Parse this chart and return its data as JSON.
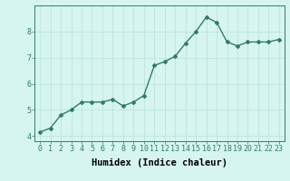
{
  "x": [
    0,
    1,
    2,
    3,
    4,
    5,
    6,
    7,
    8,
    9,
    10,
    11,
    12,
    13,
    14,
    15,
    16,
    17,
    18,
    19,
    20,
    21,
    22,
    23
  ],
  "y": [
    4.15,
    4.3,
    4.8,
    5.0,
    5.3,
    5.3,
    5.3,
    5.4,
    5.15,
    5.3,
    5.55,
    6.7,
    6.85,
    7.05,
    7.55,
    8.0,
    8.55,
    8.35,
    7.6,
    7.45,
    7.6,
    7.6,
    7.6,
    7.7
  ],
  "line_color": "#2e7d6e",
  "marker": "D",
  "marker_size": 2,
  "bg_color": "#d6f5f0",
  "grid_color": "#b8e0da",
  "xlabel": "Humidex (Indice chaleur)",
  "xlabel_fontsize": 7.5,
  "xlim": [
    -0.5,
    23.5
  ],
  "ylim": [
    3.8,
    9.0
  ],
  "yticks": [
    4,
    5,
    6,
    7,
    8
  ],
  "xticks": [
    0,
    1,
    2,
    3,
    4,
    5,
    6,
    7,
    8,
    9,
    10,
    11,
    12,
    13,
    14,
    15,
    16,
    17,
    18,
    19,
    20,
    21,
    22,
    23
  ],
  "tick_fontsize": 6,
  "line_width": 1.0
}
